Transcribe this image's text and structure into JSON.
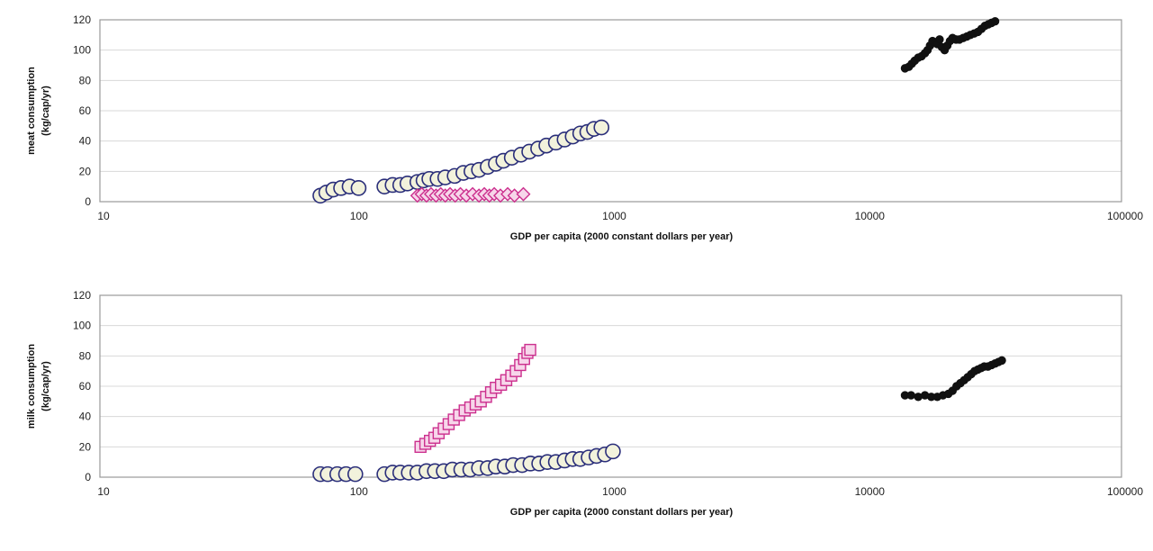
{
  "chart_data": [
    {
      "type": "scatter",
      "xlabel": "GDP per capita (2000 constant dollars per year)",
      "ylabel_lines": [
        "meat consumption",
        "(kg/cap/yr)"
      ],
      "x_scale": "log",
      "xlim": [
        10,
        100000
      ],
      "ylim": [
        0,
        120
      ],
      "x_ticks": [
        "10",
        "100",
        "1000",
        "10000",
        "100000"
      ],
      "y_ticks": [
        "0",
        "20",
        "40",
        "60",
        "80",
        "100",
        "120"
      ],
      "grid": "horizontal",
      "legend": "none",
      "series": [
        {
          "marker": "circle",
          "fill": "#f2f2dc",
          "stroke": "#2a2e7a",
          "points": [
            [
              73,
              4
            ],
            [
              77,
              6
            ],
            [
              82,
              8
            ],
            [
              88,
              9
            ],
            [
              95,
              10
            ],
            [
              103,
              9
            ],
            [
              130,
              10
            ],
            [
              140,
              11
            ],
            [
              150,
              11
            ],
            [
              160,
              12
            ],
            [
              175,
              13
            ],
            [
              185,
              14
            ],
            [
              195,
              15
            ],
            [
              210,
              15
            ],
            [
              225,
              16
            ],
            [
              245,
              17
            ],
            [
              265,
              19
            ],
            [
              285,
              20
            ],
            [
              305,
              21
            ],
            [
              330,
              23
            ],
            [
              355,
              25
            ],
            [
              380,
              27
            ],
            [
              410,
              29
            ],
            [
              445,
              31
            ],
            [
              480,
              33
            ],
            [
              520,
              35
            ],
            [
              560,
              37
            ],
            [
              610,
              39
            ],
            [
              660,
              41
            ],
            [
              710,
              43
            ],
            [
              760,
              45
            ],
            [
              810,
              46
            ],
            [
              860,
              48
            ],
            [
              920,
              49
            ]
          ]
        },
        {
          "marker": "diamond",
          "fill": "#f7d6ea",
          "stroke": "#cc2f8e",
          "points": [
            [
              175,
              4
            ],
            [
              182,
              5
            ],
            [
              190,
              4
            ],
            [
              198,
              5
            ],
            [
              207,
              4
            ],
            [
              216,
              5
            ],
            [
              225,
              4
            ],
            [
              235,
              5
            ],
            [
              246,
              4
            ],
            [
              258,
              5
            ],
            [
              272,
              4
            ],
            [
              288,
              5
            ],
            [
              305,
              4
            ],
            [
              320,
              5
            ],
            [
              335,
              4
            ],
            [
              350,
              5
            ],
            [
              370,
              4
            ],
            [
              395,
              5
            ],
            [
              420,
              4
            ],
            [
              455,
              5
            ]
          ]
        },
        {
          "marker": "dot",
          "fill": "#111111",
          "stroke": "#111111",
          "points": [
            [
              14200,
              88
            ],
            [
              14700,
              89
            ],
            [
              15100,
              91
            ],
            [
              15500,
              93
            ],
            [
              16000,
              95
            ],
            [
              16500,
              96
            ],
            [
              17000,
              98
            ],
            [
              17400,
              100
            ],
            [
              17800,
              103
            ],
            [
              18200,
              106
            ],
            [
              18600,
              105
            ],
            [
              19000,
              104
            ],
            [
              19400,
              107
            ],
            [
              19800,
              102
            ],
            [
              20300,
              100
            ],
            [
              20800,
              103
            ],
            [
              21300,
              106
            ],
            [
              21800,
              108
            ],
            [
              22500,
              107
            ],
            [
              23200,
              107
            ],
            [
              24000,
              108
            ],
            [
              24800,
              109
            ],
            [
              25600,
              110
            ],
            [
              26500,
              111
            ],
            [
              27400,
              112
            ],
            [
              28300,
              114
            ],
            [
              29200,
              116
            ],
            [
              30100,
              117
            ],
            [
              31000,
              118
            ],
            [
              32000,
              119
            ]
          ]
        }
      ]
    },
    {
      "type": "scatter",
      "xlabel": "GDP per capita (2000 constant dollars per year)",
      "ylabel_lines": [
        "milk consumption",
        "(kg/cap/yr)"
      ],
      "x_scale": "log",
      "xlim": [
        10,
        100000
      ],
      "ylim": [
        0,
        120
      ],
      "x_ticks": [
        "10",
        "100",
        "1000",
        "10000",
        "100000"
      ],
      "y_ticks": [
        "0",
        "20",
        "40",
        "60",
        "80",
        "100",
        "120"
      ],
      "grid": "horizontal",
      "legend": "none",
      "series": [
        {
          "marker": "circle",
          "fill": "#f2f2dc",
          "stroke": "#2a2e7a",
          "points": [
            [
              73,
              2
            ],
            [
              78,
              2
            ],
            [
              85,
              2
            ],
            [
              92,
              2
            ],
            [
              100,
              2
            ],
            [
              130,
              2
            ],
            [
              140,
              3
            ],
            [
              150,
              3
            ],
            [
              162,
              3
            ],
            [
              175,
              3
            ],
            [
              190,
              4
            ],
            [
              205,
              4
            ],
            [
              222,
              4
            ],
            [
              240,
              5
            ],
            [
              260,
              5
            ],
            [
              282,
              5
            ],
            [
              305,
              6
            ],
            [
              330,
              6
            ],
            [
              355,
              7
            ],
            [
              385,
              7
            ],
            [
              415,
              8
            ],
            [
              450,
              8
            ],
            [
              485,
              9
            ],
            [
              525,
              9
            ],
            [
              565,
              10
            ],
            [
              610,
              10
            ],
            [
              660,
              11
            ],
            [
              710,
              12
            ],
            [
              760,
              12
            ],
            [
              820,
              13
            ],
            [
              880,
              14
            ],
            [
              950,
              15
            ],
            [
              1020,
              17
            ]
          ]
        },
        {
          "marker": "square",
          "fill": "#f7d6ea",
          "stroke": "#cc2f8e",
          "points": [
            [
              180,
              20
            ],
            [
              188,
              22
            ],
            [
              196,
              24
            ],
            [
              204,
              26
            ],
            [
              212,
              29
            ],
            [
              222,
              32
            ],
            [
              232,
              35
            ],
            [
              243,
              38
            ],
            [
              255,
              41
            ],
            [
              268,
              44
            ],
            [
              282,
              46
            ],
            [
              296,
              48
            ],
            [
              310,
              50
            ],
            [
              325,
              53
            ],
            [
              340,
              56
            ],
            [
              355,
              59
            ],
            [
              372,
              61
            ],
            [
              390,
              64
            ],
            [
              408,
              67
            ],
            [
              425,
              70
            ],
            [
              442,
              74
            ],
            [
              458,
              78
            ],
            [
              472,
              82
            ],
            [
              484,
              84
            ]
          ]
        },
        {
          "marker": "dot",
          "fill": "#111111",
          "stroke": "#111111",
          "points": [
            [
              14200,
              54
            ],
            [
              15000,
              54
            ],
            [
              16000,
              53
            ],
            [
              17000,
              54
            ],
            [
              18000,
              53
            ],
            [
              19000,
              53
            ],
            [
              20000,
              54
            ],
            [
              21000,
              55
            ],
            [
              21800,
              57
            ],
            [
              22600,
              60
            ],
            [
              23400,
              62
            ],
            [
              24200,
              64
            ],
            [
              25000,
              66
            ],
            [
              25800,
              68
            ],
            [
              26600,
              70
            ],
            [
              27400,
              71
            ],
            [
              28200,
              72
            ],
            [
              29000,
              73
            ],
            [
              30000,
              73
            ],
            [
              31000,
              74
            ],
            [
              32000,
              75
            ],
            [
              33000,
              76
            ],
            [
              34000,
              77
            ]
          ]
        }
      ]
    }
  ]
}
